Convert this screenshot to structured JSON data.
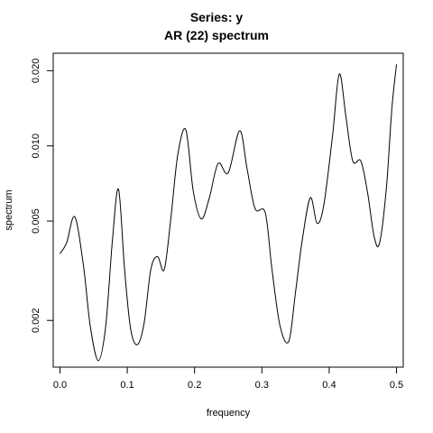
{
  "chart_data": {
    "type": "line",
    "title": "Series: y",
    "subtitle": "AR (22) spectrum",
    "xlabel": "frequency",
    "ylabel": "spectrum",
    "y_scale": "log",
    "xlim": [
      -0.01,
      0.51
    ],
    "ylim": [
      0.0013,
      0.0235
    ],
    "x_ticks": [
      0.0,
      0.1,
      0.2,
      0.3,
      0.4,
      0.5
    ],
    "x_tick_labels": [
      "0.0",
      "0.1",
      "0.2",
      "0.3",
      "0.4",
      "0.5"
    ],
    "y_ticks": [
      0.002,
      0.005,
      0.01,
      0.02
    ],
    "y_tick_labels": [
      "0.002",
      "0.005",
      "0.010",
      "0.020"
    ],
    "grid": false,
    "series": [
      {
        "color": "#000000",
        "x": [
          0.0,
          0.01,
          0.022,
          0.035,
          0.045,
          0.057,
          0.068,
          0.078,
          0.087,
          0.096,
          0.105,
          0.115,
          0.125,
          0.135,
          0.145,
          0.155,
          0.165,
          0.175,
          0.187,
          0.198,
          0.21,
          0.222,
          0.235,
          0.25,
          0.267,
          0.278,
          0.29,
          0.305,
          0.315,
          0.327,
          0.34,
          0.35,
          0.36,
          0.372,
          0.382,
          0.392,
          0.405,
          0.415,
          0.425,
          0.435,
          0.447,
          0.457,
          0.467,
          0.475,
          0.485,
          0.493,
          0.5
        ],
        "values": [
          0.0037,
          0.0041,
          0.0052,
          0.0033,
          0.0019,
          0.00138,
          0.0019,
          0.0042,
          0.0067,
          0.0032,
          0.00185,
          0.0016,
          0.00195,
          0.0032,
          0.0036,
          0.0032,
          0.0052,
          0.0092,
          0.0116,
          0.0066,
          0.0051,
          0.0062,
          0.0085,
          0.0078,
          0.0115,
          0.0081,
          0.0056,
          0.0054,
          0.0032,
          0.0019,
          0.00165,
          0.0026,
          0.0042,
          0.0062,
          0.0049,
          0.0058,
          0.011,
          0.0194,
          0.013,
          0.0087,
          0.0087,
          0.0065,
          0.0043,
          0.0041,
          0.0068,
          0.014,
          0.0212
        ]
      }
    ]
  }
}
